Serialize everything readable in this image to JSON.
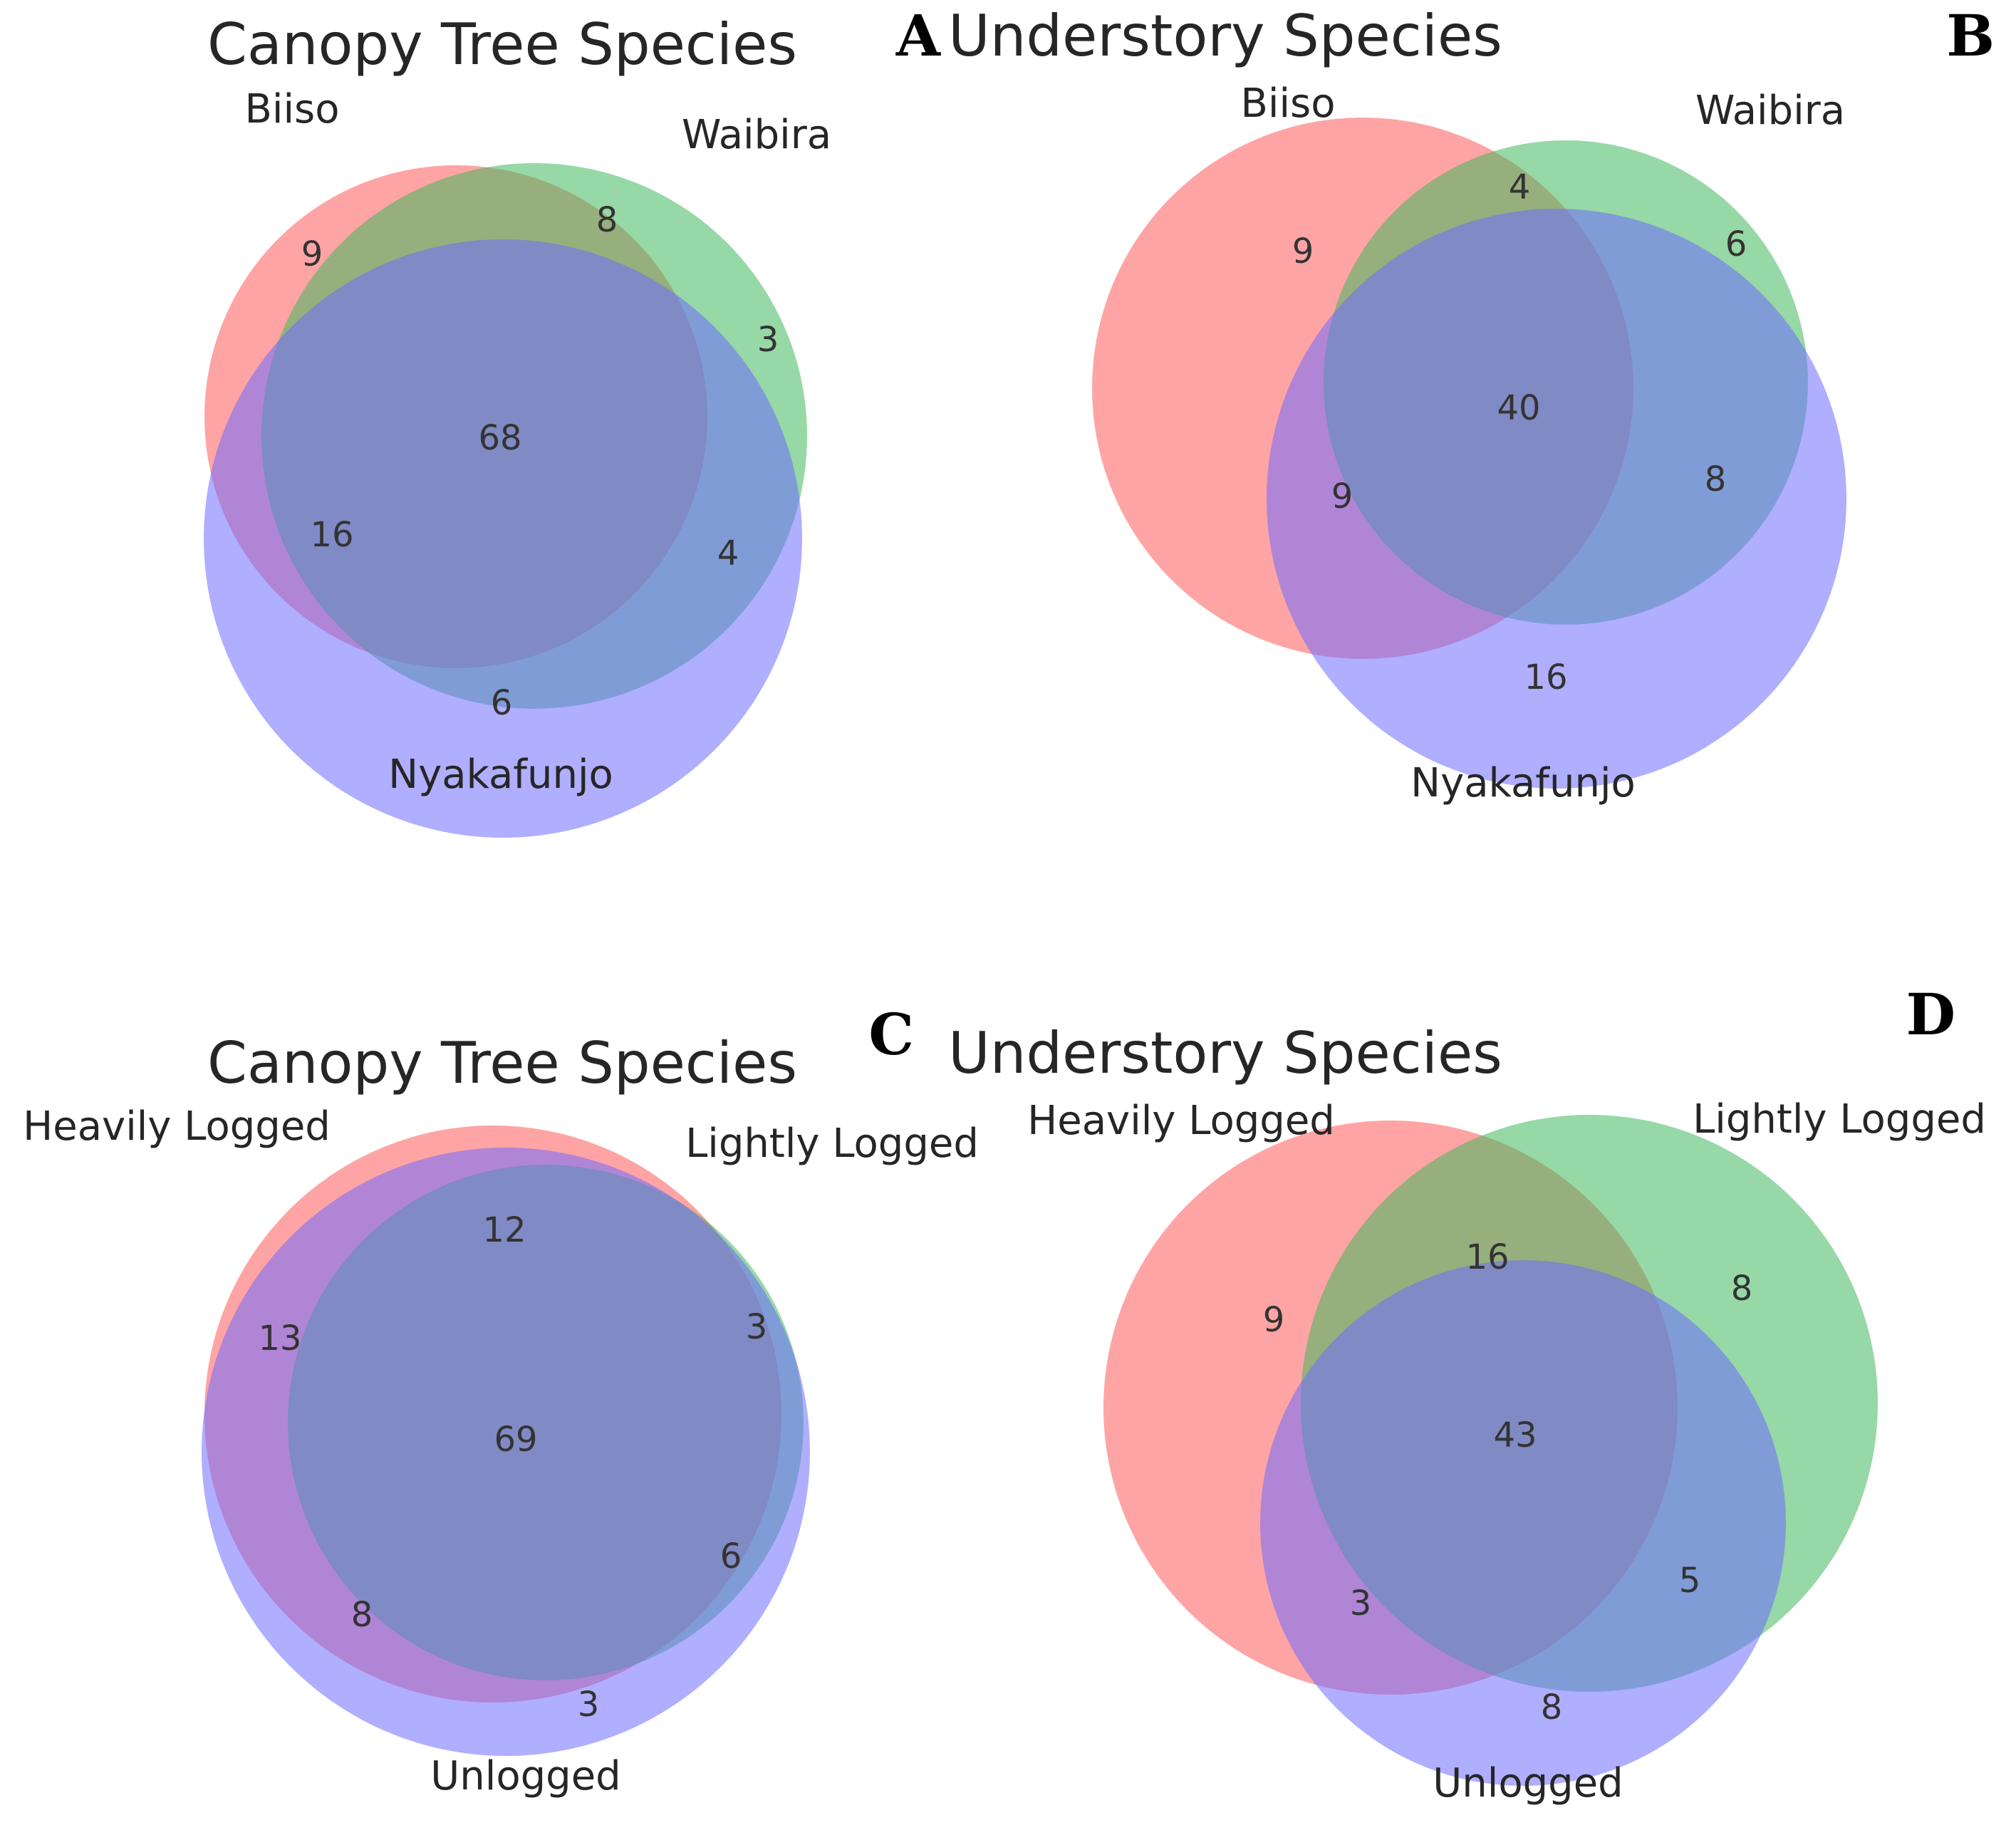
{
  "colors": {
    "set1": "#ff5a5a",
    "set2": "#3fb85c",
    "set3": "#6f6cff"
  },
  "chart_data": [
    {
      "type": "venn3",
      "panel": "A",
      "title": "Canopy Tree Species",
      "sets": [
        "Biiso",
        "Waibira",
        "Nyakafunjo"
      ],
      "regions": {
        "only_1": 9,
        "only_2": 3,
        "only_3": 6,
        "1_2": 8,
        "1_3": 16,
        "2_3": 4,
        "1_2_3": 68
      }
    },
    {
      "type": "venn3",
      "panel": "B",
      "title": "Understory Species",
      "sets": [
        "Biiso",
        "Waibira",
        "Nyakafunjo"
      ],
      "regions": {
        "only_1": 9,
        "only_2": 6,
        "only_3": 16,
        "1_2": 4,
        "1_3": 9,
        "2_3": 8,
        "1_2_3": 40
      }
    },
    {
      "type": "venn3",
      "panel": "C",
      "title": "Canopy Tree Species",
      "sets": [
        "Heavily Logged",
        "Lightly Logged",
        "Unlogged"
      ],
      "regions": {
        "only_1": 13,
        "only_2": 3,
        "only_3": 3,
        "1_2": 12,
        "1_3": 8,
        "2_3": 6,
        "1_2_3": 69
      }
    },
    {
      "type": "venn3",
      "panel": "D",
      "title": "Understory Species",
      "sets": [
        "Heavily Logged",
        "Lightly Logged",
        "Unlogged"
      ],
      "regions": {
        "only_1": 9,
        "only_2": 8,
        "only_3": 8,
        "1_2": 16,
        "1_3": 3,
        "2_3": 5,
        "1_2_3": 43
      }
    }
  ]
}
